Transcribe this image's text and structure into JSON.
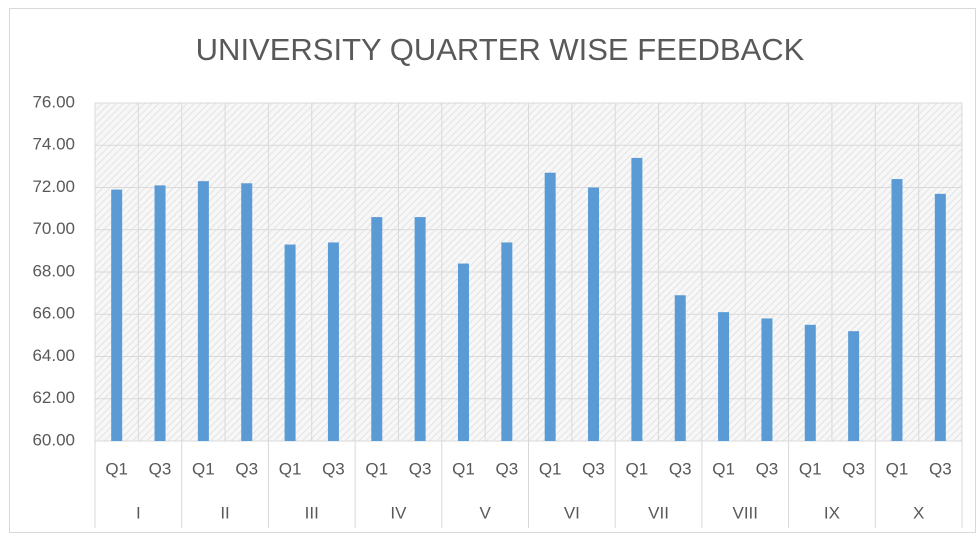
{
  "chart_data": {
    "type": "bar",
    "title": "UNIVERSITY QUARTER WISE FEEDBACK",
    "categories": [
      "Q1",
      "Q3",
      "Q1",
      "Q3",
      "Q1",
      "Q3",
      "Q1",
      "Q3",
      "Q1",
      "Q3",
      "Q1",
      "Q3",
      "Q1",
      "Q3",
      "Q1",
      "Q3",
      "Q1",
      "Q3",
      "Q1",
      "Q3"
    ],
    "groups": [
      "I",
      "II",
      "III",
      "IV",
      "V",
      "VI",
      "VII",
      "VIII",
      "IX",
      "X"
    ],
    "values": [
      71.9,
      72.1,
      72.3,
      72.2,
      69.3,
      69.4,
      70.6,
      70.6,
      68.4,
      69.4,
      72.7,
      72.0,
      73.4,
      66.9,
      66.1,
      65.8,
      65.5,
      65.2,
      72.4,
      71.7
    ],
    "color": "#5b9bd5",
    "ylim": [
      60,
      76
    ],
    "yticks": [
      {
        "value": 60,
        "label": "60.00"
      },
      {
        "value": 62,
        "label": "62.00"
      },
      {
        "value": 64,
        "label": "64.00"
      },
      {
        "value": 66,
        "label": "66.00"
      },
      {
        "value": 68,
        "label": "68.00"
      },
      {
        "value": 70,
        "label": "70.00"
      },
      {
        "value": 72,
        "label": "72.00"
      },
      {
        "value": 74,
        "label": "74.00"
      },
      {
        "value": 76,
        "label": "76.00"
      }
    ],
    "grid": true
  }
}
